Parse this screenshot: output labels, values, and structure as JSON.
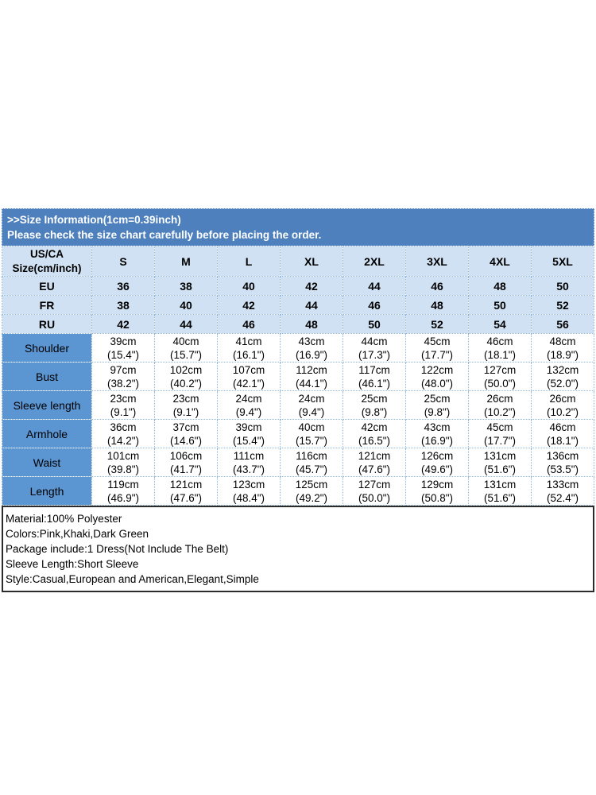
{
  "header": {
    "line1": ">>Size Information(1cm=0.39inch)",
    "line2": "Please check the size chart carefully before placing the order."
  },
  "table": {
    "corner": {
      "line1": "US/CA",
      "line2": "Size(cm/inch)"
    },
    "sizes": [
      "S",
      "M",
      "L",
      "XL",
      "2XL",
      "3XL",
      "4XL",
      "5XL"
    ],
    "region_rows": [
      {
        "label": "EU",
        "values": [
          "36",
          "38",
          "40",
          "42",
          "44",
          "46",
          "48",
          "50"
        ]
      },
      {
        "label": "FR",
        "values": [
          "38",
          "40",
          "42",
          "44",
          "46",
          "48",
          "50",
          "52"
        ]
      },
      {
        "label": "RU",
        "values": [
          "42",
          "44",
          "46",
          "48",
          "50",
          "52",
          "54",
          "56"
        ]
      }
    ],
    "measurement_rows": [
      {
        "label": "Shoulder",
        "values": [
          {
            "cm": "39cm",
            "in": "(15.4\")"
          },
          {
            "cm": "40cm",
            "in": "(15.7\")"
          },
          {
            "cm": "41cm",
            "in": "(16.1\")"
          },
          {
            "cm": "43cm",
            "in": "(16.9\")"
          },
          {
            "cm": "44cm",
            "in": "(17.3\")"
          },
          {
            "cm": "45cm",
            "in": "(17.7\")"
          },
          {
            "cm": "46cm",
            "in": "(18.1\")"
          },
          {
            "cm": "48cm",
            "in": "(18.9\")"
          }
        ]
      },
      {
        "label": "Bust",
        "values": [
          {
            "cm": "97cm",
            "in": "(38.2\")"
          },
          {
            "cm": "102cm",
            "in": "(40.2\")"
          },
          {
            "cm": "107cm",
            "in": "(42.1\")"
          },
          {
            "cm": "112cm",
            "in": "(44.1\")"
          },
          {
            "cm": "117cm",
            "in": "(46.1\")"
          },
          {
            "cm": "122cm",
            "in": "(48.0\")"
          },
          {
            "cm": "127cm",
            "in": "(50.0\")"
          },
          {
            "cm": "132cm",
            "in": "(52.0\")"
          }
        ]
      },
      {
        "label": "Sleeve length",
        "values": [
          {
            "cm": "23cm",
            "in": "(9.1\")"
          },
          {
            "cm": "23cm",
            "in": "(9.1\")"
          },
          {
            "cm": "24cm",
            "in": "(9.4\")"
          },
          {
            "cm": "24cm",
            "in": "(9.4\")"
          },
          {
            "cm": "25cm",
            "in": "(9.8\")"
          },
          {
            "cm": "25cm",
            "in": "(9.8\")"
          },
          {
            "cm": "26cm",
            "in": "(10.2\")"
          },
          {
            "cm": "26cm",
            "in": "(10.2\")"
          }
        ]
      },
      {
        "label": "Armhole",
        "values": [
          {
            "cm": "36cm",
            "in": "(14.2\")"
          },
          {
            "cm": "37cm",
            "in": "(14.6\")"
          },
          {
            "cm": "39cm",
            "in": "(15.4\")"
          },
          {
            "cm": "40cm",
            "in": "(15.7\")"
          },
          {
            "cm": "42cm",
            "in": "(16.5\")"
          },
          {
            "cm": "43cm",
            "in": "(16.9\")"
          },
          {
            "cm": "45cm",
            "in": "(17.7\")"
          },
          {
            "cm": "46cm",
            "in": "(18.1\")"
          }
        ]
      },
      {
        "label": "Waist",
        "values": [
          {
            "cm": "101cm",
            "in": "(39.8\")"
          },
          {
            "cm": "106cm",
            "in": "(41.7\")"
          },
          {
            "cm": "111cm",
            "in": "(43.7\")"
          },
          {
            "cm": "116cm",
            "in": "(45.7\")"
          },
          {
            "cm": "121cm",
            "in": "(47.6\")"
          },
          {
            "cm": "126cm",
            "in": "(49.6\")"
          },
          {
            "cm": "131cm",
            "in": "(51.6\")"
          },
          {
            "cm": "136cm",
            "in": "(53.5\")"
          }
        ]
      },
      {
        "label": "Length",
        "values": [
          {
            "cm": "119cm",
            "in": "(46.9\")"
          },
          {
            "cm": "121cm",
            "in": "(47.6\")"
          },
          {
            "cm": "123cm",
            "in": "(48.4\")"
          },
          {
            "cm": "125cm",
            "in": "(49.2\")"
          },
          {
            "cm": "127cm",
            "in": "(50.0\")"
          },
          {
            "cm": "129cm",
            "in": "(50.8\")"
          },
          {
            "cm": "131cm",
            "in": "(51.6\")"
          },
          {
            "cm": "133cm",
            "in": "(52.4\")"
          }
        ]
      }
    ]
  },
  "product_info": {
    "lines": [
      "Material:100% Polyester",
      "Colors:Pink,Khaki,Dark Green",
      "Package include:1 Dress(Not Include The Belt)",
      "Sleeve Length:Short Sleeve",
      "Style:Casual,European and American,Elegant,Simple"
    ]
  },
  "colors": {
    "band_bg": "#4d80bd",
    "header_fill": "#cfe1f2",
    "label_column_fill": "#5b95d2",
    "grid_line": "#8fb6de",
    "info_border": "#2b2b2b"
  }
}
